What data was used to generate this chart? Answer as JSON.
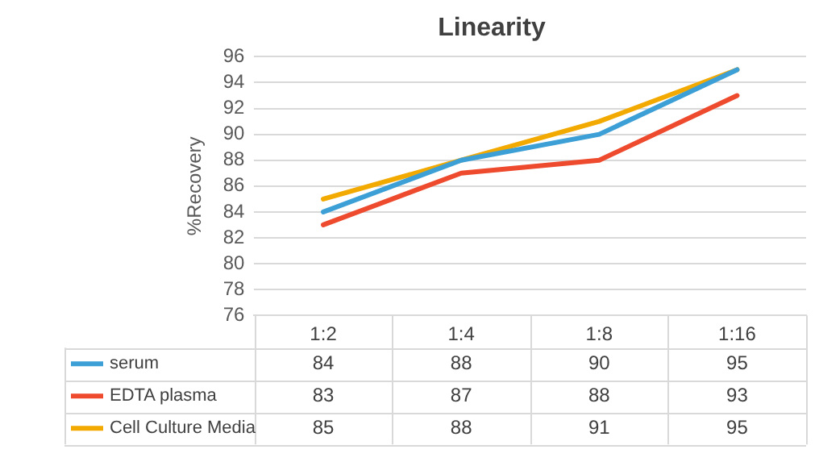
{
  "chart_data": {
    "type": "line",
    "title": "Linearity",
    "ylabel": "%Recovery",
    "categories": [
      "1:2",
      "1:4",
      "1:8",
      "1:16"
    ],
    "series": [
      {
        "name": "serum",
        "color": "#3c9fd6",
        "values": [
          84,
          88,
          90,
          95
        ]
      },
      {
        "name": "EDTA plasma",
        "color": "#ee4a2e",
        "values": [
          83,
          87,
          88,
          93
        ]
      },
      {
        "name": "Cell Culture Media",
        "color": "#f2a900",
        "values": [
          85,
          88,
          91,
          95
        ]
      }
    ],
    "ylim": [
      76,
      96
    ],
    "yticks": [
      76,
      78,
      80,
      82,
      84,
      86,
      88,
      90,
      92,
      94,
      96
    ],
    "grid": "y",
    "legend": "bottom",
    "data_labels": true,
    "marker": "none",
    "line_style": "solid"
  }
}
